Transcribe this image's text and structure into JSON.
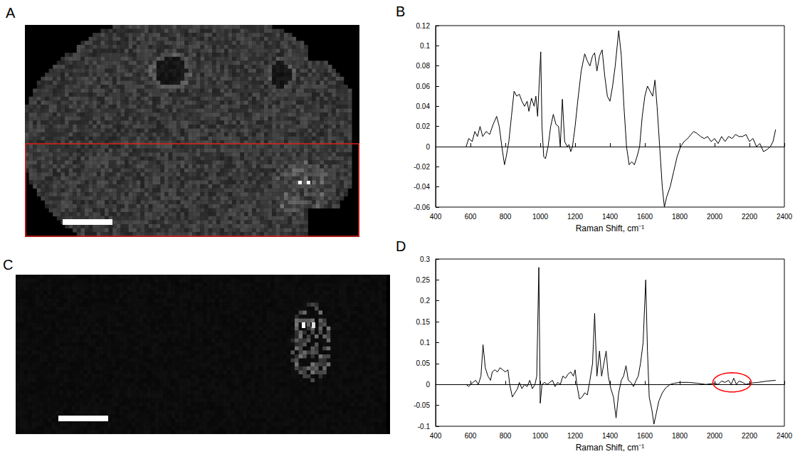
{
  "figure": {
    "images": [
      {
        "panel": "A"
      },
      {
        "panel": "C"
      }
    ]
  },
  "chart_data": [
    {
      "panel": "B",
      "type": "line",
      "xlabel": "Raman Shift, cm⁻¹",
      "color": "#000000",
      "grid": false,
      "xlim": [
        400,
        2400
      ],
      "xticks": [
        400,
        600,
        800,
        1000,
        1200,
        1400,
        1600,
        1800,
        2000,
        2200,
        2400
      ],
      "ylim": [
        -0.06,
        0.12
      ],
      "yticks": [
        -0.06,
        -0.04,
        -0.02,
        0,
        0.02,
        0.04,
        0.06,
        0.08,
        0.1,
        0.12
      ],
      "x": [
        575,
        590,
        610,
        625,
        640,
        655,
        670,
        690,
        710,
        730,
        750,
        765,
        780,
        795,
        805,
        820,
        835,
        850,
        865,
        880,
        895,
        910,
        925,
        935,
        950,
        965,
        975,
        985,
        1003,
        1010,
        1020,
        1030,
        1045,
        1060,
        1075,
        1090,
        1105,
        1115,
        1127,
        1140,
        1155,
        1165,
        1175,
        1185,
        1200,
        1215,
        1235,
        1255,
        1270,
        1285,
        1300,
        1312,
        1325,
        1340,
        1355,
        1370,
        1385,
        1400,
        1415,
        1430,
        1450,
        1465,
        1480,
        1495,
        1510,
        1525,
        1540,
        1555,
        1570,
        1585,
        1600,
        1615,
        1630,
        1645,
        1658,
        1670,
        1685,
        1700,
        1712,
        1725,
        1745,
        1765,
        1785,
        1805,
        1825,
        1845,
        1865,
        1880,
        1900,
        1920,
        1940,
        1960,
        1980,
        2000,
        2020,
        2040,
        2060,
        2080,
        2100,
        2120,
        2140,
        2160,
        2180,
        2200,
        2220,
        2240,
        2260,
        2280,
        2300,
        2320,
        2335,
        2350
      ],
      "values": [
        0.0,
        0.008,
        0.005,
        0.015,
        0.01,
        0.02,
        0.01,
        0.015,
        0.012,
        0.022,
        0.03,
        0.02,
        0.0,
        -0.018,
        -0.01,
        0.005,
        0.03,
        0.055,
        0.05,
        0.052,
        0.045,
        0.04,
        0.045,
        0.035,
        0.048,
        0.04,
        0.05,
        0.03,
        0.094,
        0.02,
        -0.01,
        -0.012,
        0.0,
        0.02,
        0.032,
        0.022,
        0.02,
        0.0,
        0.047,
        0.005,
        0.0,
        0.002,
        -0.005,
        0.0,
        0.02,
        0.045,
        0.075,
        0.092,
        0.085,
        0.08,
        0.09,
        0.093,
        0.075,
        0.09,
        0.096,
        0.07,
        0.05,
        0.045,
        0.06,
        0.08,
        0.115,
        0.09,
        0.04,
        0.0,
        -0.018,
        -0.015,
        -0.018,
        -0.01,
        0.0,
        0.03,
        0.05,
        0.06,
        0.055,
        0.05,
        0.066,
        0.04,
        0.0,
        -0.04,
        -0.06,
        -0.05,
        -0.04,
        -0.025,
        -0.01,
        0.0,
        0.005,
        0.008,
        0.012,
        0.015,
        0.013,
        0.01,
        0.008,
        0.01,
        0.005,
        0.008,
        0.003,
        0.01,
        0.005,
        0.01,
        0.008,
        0.012,
        0.01,
        0.01,
        0.012,
        0.005,
        0.008,
        0.0,
        0.003,
        -0.005,
        -0.003,
        0.0,
        0.005,
        0.017
      ]
    },
    {
      "panel": "D",
      "type": "line",
      "xlabel": "Raman Shift, cm⁻¹",
      "color": "#000000",
      "grid": false,
      "xlim": [
        400,
        2400
      ],
      "xticks": [
        400,
        600,
        800,
        1000,
        1200,
        1400,
        1600,
        1800,
        2000,
        2200,
        2400
      ],
      "ylim": [
        -0.1,
        0.3
      ],
      "yticks": [
        -0.1,
        -0.05,
        0,
        0.05,
        0.1,
        0.15,
        0.2,
        0.25,
        0.3
      ],
      "x": [
        575,
        590,
        600,
        615,
        630,
        645,
        660,
        672,
        685,
        700,
        715,
        725,
        740,
        755,
        770,
        785,
        800,
        815,
        825,
        840,
        855,
        870,
        880,
        895,
        910,
        925,
        940,
        955,
        970,
        980,
        992,
        1000,
        1010,
        1025,
        1040,
        1055,
        1070,
        1085,
        1100,
        1115,
        1130,
        1145,
        1160,
        1175,
        1190,
        1200,
        1210,
        1225,
        1240,
        1255,
        1270,
        1285,
        1300,
        1312,
        1325,
        1340,
        1352,
        1365,
        1378,
        1390,
        1405,
        1420,
        1435,
        1450,
        1465,
        1478,
        1492,
        1505,
        1520,
        1535,
        1550,
        1562,
        1575,
        1590,
        1605,
        1615,
        1625,
        1640,
        1652,
        1665,
        1680,
        1700,
        1720,
        1745,
        1770,
        1800,
        1850,
        1900,
        1950,
        2000,
        2020,
        2040,
        2060,
        2080,
        2095,
        2110,
        2125,
        2140,
        2160,
        2180,
        2200,
        2250,
        2300,
        2350
      ],
      "values": [
        0.0,
        -0.005,
        0.0,
        0.005,
        0.01,
        0.0,
        0.02,
        0.095,
        0.04,
        0.02,
        0.01,
        0.03,
        0.035,
        0.03,
        0.04,
        0.035,
        0.03,
        0.035,
        0.0,
        -0.03,
        -0.02,
        -0.01,
        0.005,
        -0.01,
        0.0,
        -0.005,
        0.01,
        -0.01,
        0.0,
        0.02,
        0.28,
        -0.045,
        0.0,
        0.005,
        0.0,
        0.005,
        0.01,
        -0.005,
        0.005,
        0.0,
        0.02,
        0.015,
        0.025,
        0.03,
        0.02,
        0.035,
        0.0,
        -0.035,
        -0.03,
        -0.02,
        -0.025,
        0.01,
        0.05,
        0.17,
        0.02,
        0.08,
        0.02,
        0.05,
        0.08,
        0.02,
        -0.01,
        -0.03,
        -0.08,
        -0.02,
        0.01,
        0.02,
        0.045,
        0.01,
        0.005,
        -0.005,
        0.01,
        0.02,
        0.05,
        0.1,
        0.25,
        0.08,
        -0.03,
        -0.06,
        -0.095,
        -0.07,
        -0.04,
        -0.02,
        -0.008,
        0.0,
        0.003,
        0.005,
        0.005,
        0.003,
        0.0,
        0.003,
        0.0,
        0.008,
        0.005,
        0.01,
        0.0,
        0.015,
        0.0,
        0.008,
        0.005,
        0.0,
        0.003,
        0.005,
        0.008,
        0.01
      ],
      "annotation": {
        "shape": "ellipse",
        "x": [
          1990,
          2210
        ],
        "y": [
          -0.018,
          0.028
        ],
        "color": "#ff0000"
      }
    }
  ]
}
